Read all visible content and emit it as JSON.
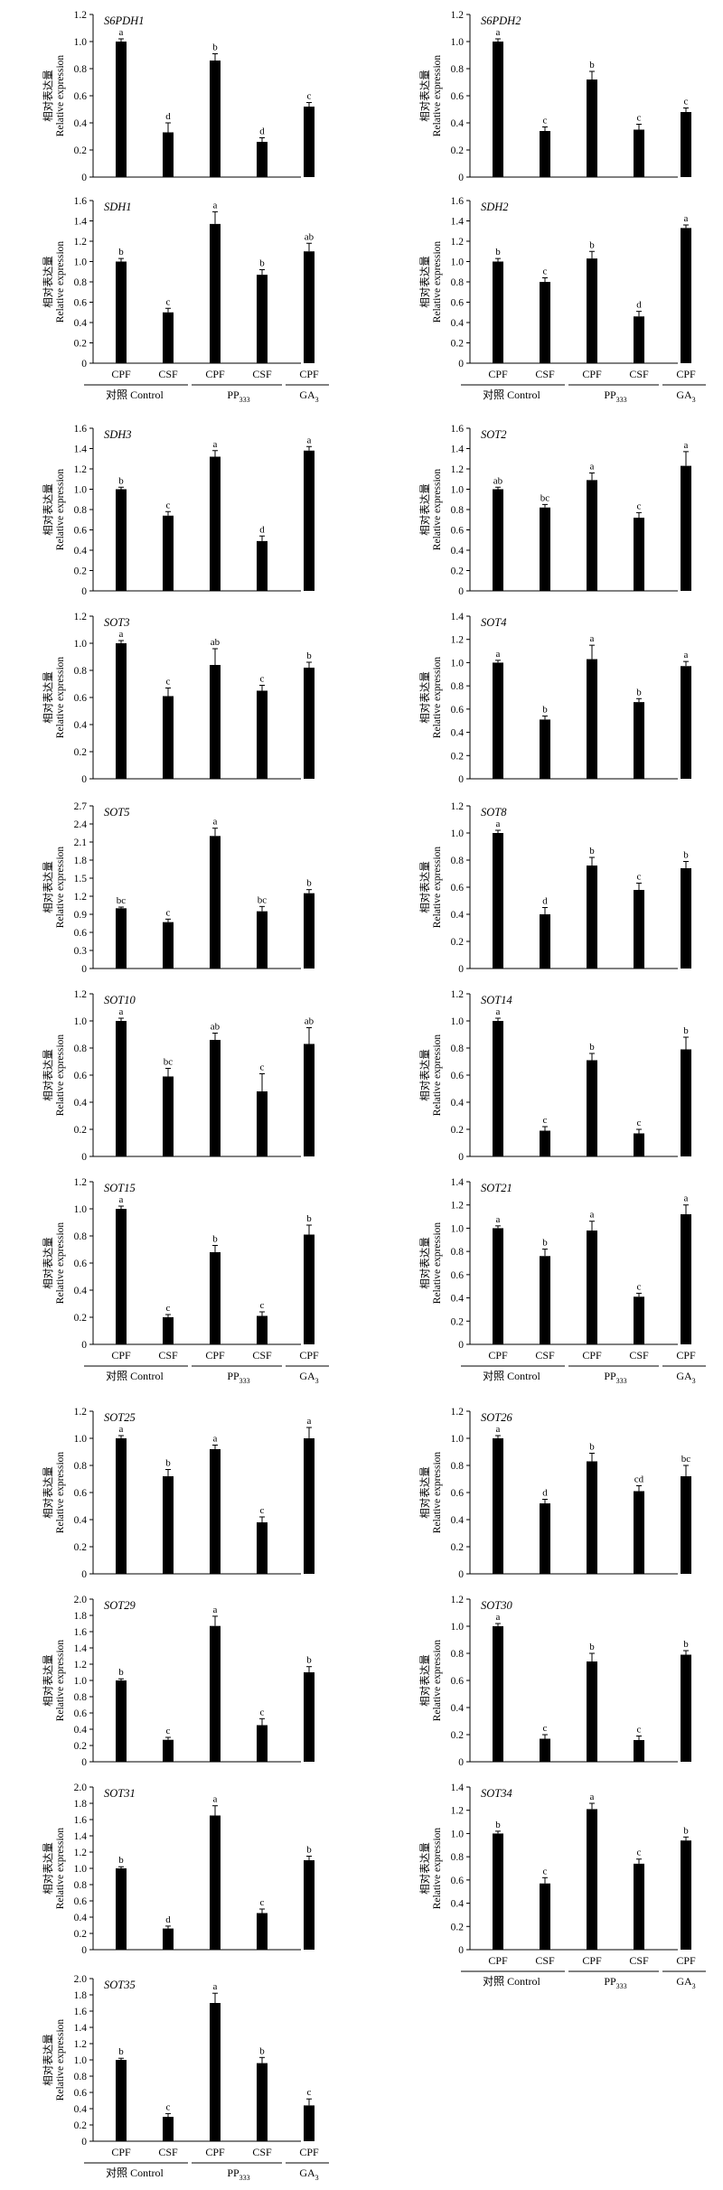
{
  "groups": [
    {
      "label": "对照 Control"
    },
    {
      "label": "PP",
      "sub": "333"
    },
    {
      "label": "GA",
      "sub": "3"
    }
  ],
  "ylabel_cn": "相对表达量",
  "ylabel_en": "Relative expression",
  "categories": [
    "CPF",
    "CSF",
    "CPF",
    "CSF",
    "CPF"
  ],
  "chart_data": [
    {
      "type": "bar",
      "title": "S6PDH1",
      "ylim": [
        0,
        1.2
      ],
      "ticks": [
        "0",
        "0.2",
        "0.4",
        "0.6",
        "0.8",
        "1.0",
        "1.2"
      ],
      "values": [
        1.0,
        0.33,
        0.86,
        0.26,
        0.52
      ],
      "errors": [
        0.02,
        0.07,
        0.05,
        0.03,
        0.03
      ],
      "letters": [
        "a",
        "d",
        "b",
        "d",
        "c"
      ]
    },
    {
      "type": "bar",
      "title": "S6PDH2",
      "ylim": [
        0,
        1.2
      ],
      "ticks": [
        "0",
        "0.2",
        "0.4",
        "0.6",
        "0.8",
        "1.0",
        "1.2"
      ],
      "values": [
        1.0,
        0.34,
        0.72,
        0.35,
        0.48
      ],
      "errors": [
        0.02,
        0.03,
        0.06,
        0.04,
        0.03
      ],
      "letters": [
        "a",
        "c",
        "b",
        "c",
        "c"
      ]
    },
    {
      "type": "bar",
      "title": "SDH1",
      "ylim": [
        0,
        1.6
      ],
      "ticks": [
        "0",
        "0.2",
        "0.4",
        "0.6",
        "0.8",
        "1.0",
        "1.2",
        "1.4",
        "1.6"
      ],
      "values": [
        1.0,
        0.5,
        1.37,
        0.87,
        1.1
      ],
      "errors": [
        0.03,
        0.04,
        0.12,
        0.05,
        0.08
      ],
      "letters": [
        "b",
        "c",
        "a",
        "b",
        "ab"
      ]
    },
    {
      "type": "bar",
      "title": "SDH2",
      "ylim": [
        0,
        1.6
      ],
      "ticks": [
        "0",
        "0.2",
        "0.4",
        "0.6",
        "0.8",
        "1.0",
        "1.2",
        "1.4",
        "1.6"
      ],
      "values": [
        1.0,
        0.8,
        1.03,
        0.46,
        1.33
      ],
      "errors": [
        0.03,
        0.04,
        0.07,
        0.05,
        0.03
      ],
      "letters": [
        "b",
        "c",
        "b",
        "d",
        "a"
      ]
    },
    {
      "type": "bar",
      "title": "SDH3",
      "ylim": [
        0,
        1.6
      ],
      "ticks": [
        "0",
        "0.2",
        "0.4",
        "0.6",
        "0.8",
        "1.0",
        "1.2",
        "1.4",
        "1.6"
      ],
      "values": [
        1.0,
        0.74,
        1.32,
        0.49,
        1.38
      ],
      "errors": [
        0.02,
        0.04,
        0.06,
        0.05,
        0.04
      ],
      "letters": [
        "b",
        "c",
        "a",
        "d",
        "a"
      ]
    },
    {
      "type": "bar",
      "title": "SOT2",
      "ylim": [
        0,
        1.6
      ],
      "ticks": [
        "0",
        "0.2",
        "0.4",
        "0.6",
        "0.8",
        "1.0",
        "1.2",
        "1.4",
        "1.6"
      ],
      "values": [
        1.0,
        0.82,
        1.09,
        0.72,
        1.23
      ],
      "errors": [
        0.02,
        0.03,
        0.07,
        0.05,
        0.14
      ],
      "letters": [
        "ab",
        "bc",
        "a",
        "c",
        "a"
      ]
    },
    {
      "type": "bar",
      "title": "SOT3",
      "ylim": [
        0,
        1.2
      ],
      "ticks": [
        "0",
        "0.2",
        "0.4",
        "0.6",
        "0.8",
        "1.0",
        "1.2"
      ],
      "values": [
        1.0,
        0.61,
        0.84,
        0.65,
        0.82
      ],
      "errors": [
        0.02,
        0.06,
        0.12,
        0.04,
        0.04
      ],
      "letters": [
        "a",
        "c",
        "ab",
        "c",
        "b"
      ]
    },
    {
      "type": "bar",
      "title": "SOT4",
      "ylim": [
        0,
        1.4
      ],
      "ticks": [
        "0",
        "0.2",
        "0.4",
        "0.6",
        "0.8",
        "1.0",
        "1.2",
        "1.4"
      ],
      "values": [
        1.0,
        0.51,
        1.03,
        0.66,
        0.97
      ],
      "errors": [
        0.02,
        0.03,
        0.12,
        0.03,
        0.04
      ],
      "letters": [
        "a",
        "b",
        "a",
        "b",
        "a"
      ]
    },
    {
      "type": "bar",
      "title": "SOT5",
      "ylim": [
        0,
        2.7
      ],
      "ticks": [
        "0",
        "0.3",
        "0.6",
        "0.9",
        "1.2",
        "1.5",
        "1.8",
        "2.1",
        "2.4",
        "2.7"
      ],
      "values": [
        1.0,
        0.77,
        2.2,
        0.95,
        1.25
      ],
      "errors": [
        0.02,
        0.05,
        0.13,
        0.08,
        0.06
      ],
      "letters": [
        "bc",
        "c",
        "a",
        "bc",
        "b"
      ]
    },
    {
      "type": "bar",
      "title": "SOT8",
      "ylim": [
        0,
        1.2
      ],
      "ticks": [
        "0",
        "0.2",
        "0.4",
        "0.6",
        "0.8",
        "1.0",
        "1.2"
      ],
      "values": [
        1.0,
        0.4,
        0.76,
        0.58,
        0.74
      ],
      "errors": [
        0.02,
        0.05,
        0.06,
        0.05,
        0.05
      ],
      "letters": [
        "a",
        "d",
        "b",
        "c",
        "b"
      ]
    },
    {
      "type": "bar",
      "title": "SOT10",
      "ylim": [
        0,
        1.2
      ],
      "ticks": [
        "0",
        "0.2",
        "0.4",
        "0.6",
        "0.8",
        "1.0",
        "1.2"
      ],
      "values": [
        1.0,
        0.59,
        0.86,
        0.48,
        0.83
      ],
      "errors": [
        0.02,
        0.06,
        0.05,
        0.13,
        0.12
      ],
      "letters": [
        "a",
        "bc",
        "ab",
        "c",
        "ab"
      ]
    },
    {
      "type": "bar",
      "title": "SOT14",
      "ylim": [
        0,
        1.2
      ],
      "ticks": [
        "0",
        "0.2",
        "0.4",
        "0.6",
        "0.8",
        "1.0",
        "1.2"
      ],
      "values": [
        1.0,
        0.19,
        0.71,
        0.17,
        0.79
      ],
      "errors": [
        0.02,
        0.03,
        0.05,
        0.03,
        0.09
      ],
      "letters": [
        "a",
        "c",
        "b",
        "c",
        "b"
      ]
    },
    {
      "type": "bar",
      "title": "SOT15",
      "ylim": [
        0,
        1.2
      ],
      "ticks": [
        "0",
        "0.2",
        "0.4",
        "0.6",
        "0.8",
        "1.0",
        "1.2"
      ],
      "values": [
        1.0,
        0.2,
        0.68,
        0.21,
        0.81
      ],
      "errors": [
        0.02,
        0.02,
        0.05,
        0.03,
        0.07
      ],
      "letters": [
        "a",
        "c",
        "b",
        "c",
        "b"
      ]
    },
    {
      "type": "bar",
      "title": "SOT21",
      "ylim": [
        0,
        1.4
      ],
      "ticks": [
        "0",
        "0.2",
        "0.4",
        "0.6",
        "0.8",
        "1.0",
        "1.2",
        "1.4"
      ],
      "values": [
        1.0,
        0.76,
        0.98,
        0.41,
        1.12
      ],
      "errors": [
        0.02,
        0.06,
        0.08,
        0.03,
        0.08
      ],
      "letters": [
        "a",
        "b",
        "a",
        "c",
        "a"
      ]
    },
    {
      "type": "bar",
      "title": "SOT25",
      "ylim": [
        0,
        1.2
      ],
      "ticks": [
        "0",
        "0.2",
        "0.4",
        "0.6",
        "0.8",
        "1.0",
        "1.2"
      ],
      "values": [
        1.0,
        0.72,
        0.92,
        0.38,
        1.0
      ],
      "errors": [
        0.02,
        0.05,
        0.03,
        0.04,
        0.08
      ],
      "letters": [
        "a",
        "b",
        "a",
        "c",
        "a"
      ]
    },
    {
      "type": "bar",
      "title": "SOT26",
      "ylim": [
        0,
        1.2
      ],
      "ticks": [
        "0",
        "0.2",
        "0.4",
        "0.6",
        "0.8",
        "1.0",
        "1.2"
      ],
      "values": [
        1.0,
        0.52,
        0.83,
        0.61,
        0.72
      ],
      "errors": [
        0.02,
        0.03,
        0.06,
        0.04,
        0.08
      ],
      "letters": [
        "a",
        "d",
        "b",
        "cd",
        "bc"
      ]
    },
    {
      "type": "bar",
      "title": "SOT29",
      "ylim": [
        0,
        2.0
      ],
      "ticks": [
        "0",
        "0.2",
        "0.4",
        "0.6",
        "0.8",
        "1.0",
        "1.2",
        "1.4",
        "1.6",
        "1.8",
        "2.0"
      ],
      "values": [
        1.0,
        0.27,
        1.67,
        0.45,
        1.1
      ],
      "errors": [
        0.02,
        0.03,
        0.12,
        0.08,
        0.07
      ],
      "letters": [
        "b",
        "c",
        "a",
        "c",
        "b"
      ]
    },
    {
      "type": "bar",
      "title": "SOT30",
      "ylim": [
        0,
        1.2
      ],
      "ticks": [
        "0",
        "0.2",
        "0.4",
        "0.6",
        "0.8",
        "1.0",
        "1.2"
      ],
      "values": [
        1.0,
        0.17,
        0.74,
        0.16,
        0.79
      ],
      "errors": [
        0.02,
        0.03,
        0.06,
        0.03,
        0.03
      ],
      "letters": [
        "a",
        "c",
        "b",
        "c",
        "b"
      ]
    },
    {
      "type": "bar",
      "title": "SOT31",
      "ylim": [
        0,
        2.0
      ],
      "ticks": [
        "0",
        "0.2",
        "0.4",
        "0.6",
        "0.8",
        "1.0",
        "1.2",
        "1.4",
        "1.6",
        "1.8",
        "2.0"
      ],
      "values": [
        1.0,
        0.26,
        1.65,
        0.45,
        1.1
      ],
      "errors": [
        0.02,
        0.03,
        0.12,
        0.05,
        0.05
      ],
      "letters": [
        "b",
        "d",
        "a",
        "c",
        "b"
      ]
    },
    {
      "type": "bar",
      "title": "SOT34",
      "ylim": [
        0,
        1.4
      ],
      "ticks": [
        "0",
        "0.2",
        "0.4",
        "0.6",
        "0.8",
        "1.0",
        "1.2",
        "1.4"
      ],
      "values": [
        1.0,
        0.57,
        1.21,
        0.74,
        0.94
      ],
      "errors": [
        0.02,
        0.05,
        0.05,
        0.04,
        0.03
      ],
      "letters": [
        "b",
        "c",
        "a",
        "c",
        "b"
      ]
    },
    {
      "type": "bar",
      "title": "SOT35",
      "ylim": [
        0,
        2.0
      ],
      "ticks": [
        "0",
        "0.2",
        "0.4",
        "0.6",
        "0.8",
        "1.0",
        "1.2",
        "1.4",
        "1.6",
        "1.8",
        "2.0"
      ],
      "values": [
        1.0,
        0.3,
        1.7,
        0.96,
        0.44
      ],
      "errors": [
        0.02,
        0.04,
        0.12,
        0.07,
        0.08
      ],
      "letters": [
        "b",
        "c",
        "a",
        "b",
        "c"
      ]
    }
  ]
}
